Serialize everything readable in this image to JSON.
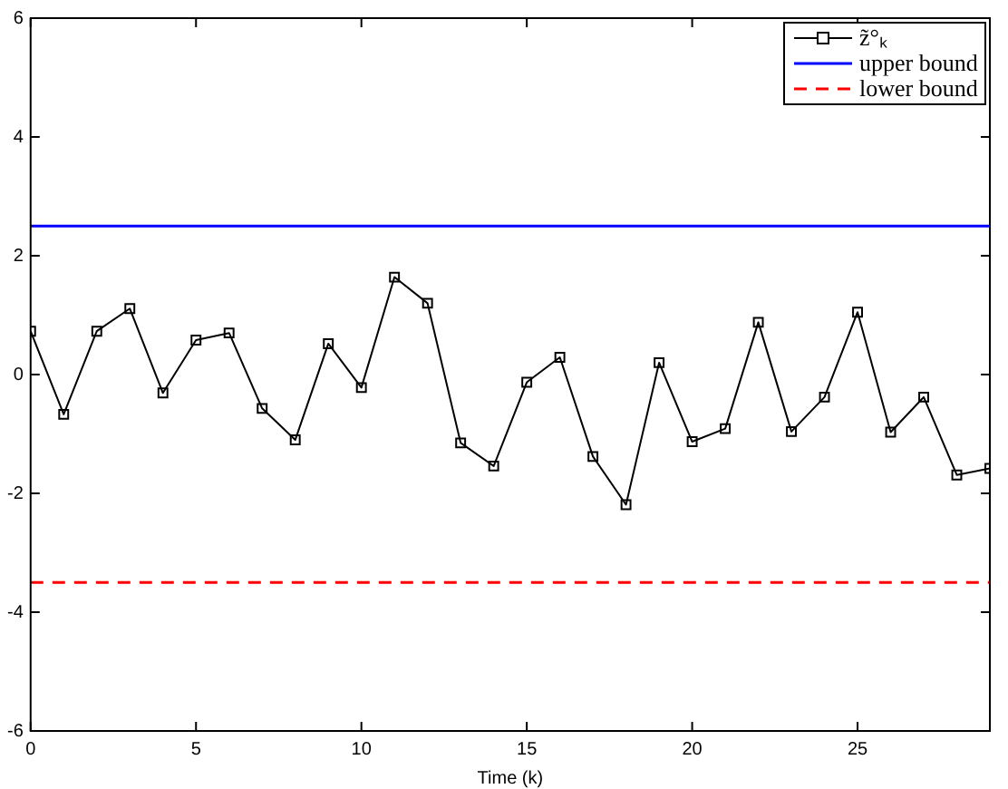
{
  "chart_data": {
    "type": "line",
    "xlabel": "Time (k)",
    "x": [
      0,
      1,
      2,
      3,
      4,
      5,
      6,
      7,
      8,
      9,
      10,
      11,
      12,
      13,
      14,
      15,
      16,
      17,
      18,
      19,
      20,
      21,
      22,
      23,
      24,
      25,
      26,
      27,
      28,
      29
    ],
    "series": [
      {
        "name": "z̃°ₖ",
        "color": "#000000",
        "values": [
          0.73,
          -0.67,
          0.73,
          1.11,
          -0.31,
          0.58,
          0.7,
          -0.57,
          -1.1,
          0.52,
          -0.22,
          1.64,
          1.2,
          -1.15,
          -1.54,
          -0.13,
          0.29,
          -1.38,
          -2.19,
          0.2,
          -1.13,
          -0.91,
          0.88,
          -0.96,
          -0.38,
          1.05,
          -0.97,
          -0.38,
          -1.69,
          -1.58
        ]
      }
    ],
    "ref_lines": [
      {
        "axis": "y",
        "value": 2.5,
        "label": "upper bound",
        "color": "#0000ff",
        "line_style": "solid"
      },
      {
        "axis": "y",
        "value": -3.5,
        "label": "lower bound",
        "color": "#ff0000",
        "line_style": "dashed"
      }
    ],
    "xlim": [
      0,
      29
    ],
    "xticks": [
      0,
      5,
      10,
      15,
      20,
      25
    ],
    "ylim": [
      -6,
      6
    ],
    "yticks": [
      -6,
      -4,
      -2,
      0,
      2,
      4,
      6
    ],
    "grid": false,
    "legend": "top right",
    "marker": "square",
    "line_style": "solid"
  }
}
